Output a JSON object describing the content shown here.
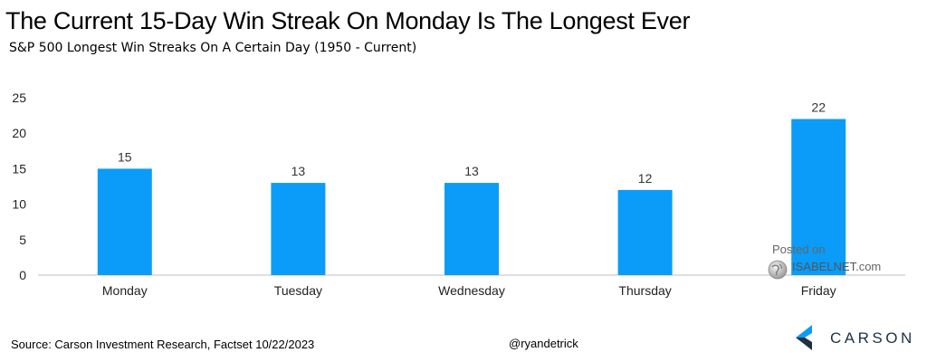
{
  "title": "The Current 15-Day Win Streak On Monday Is The Longest Ever",
  "subtitle": "S&P 500 Longest Win Streaks On A Certain Day (1950 - Current)",
  "footer": {
    "source": "Source: Carson Investment Research, Factset 10/22/2023",
    "handle": "@ryandetrick"
  },
  "watermark": {
    "line1": "Posted on",
    "line2": "ISABELNET",
    "line2_suffix": ".com",
    "icon": "globe-icon"
  },
  "brand": {
    "name": "CARSON",
    "icon": "carson-logo-icon"
  },
  "colors": {
    "bar": "#0a9cf8",
    "axis": "#bfbfbf",
    "brand_blue": "#0a9cf8",
    "brand_dark": "#1d3142"
  },
  "chart_data": {
    "type": "bar",
    "categories": [
      "Monday",
      "Tuesday",
      "Wednesday",
      "Thursday",
      "Friday"
    ],
    "values": [
      15,
      13,
      13,
      12,
      22
    ],
    "ylim": [
      0,
      25
    ],
    "yticks": [
      0,
      5,
      10,
      15,
      20,
      25
    ],
    "data_labels": true,
    "grid": false,
    "legend": "none"
  }
}
